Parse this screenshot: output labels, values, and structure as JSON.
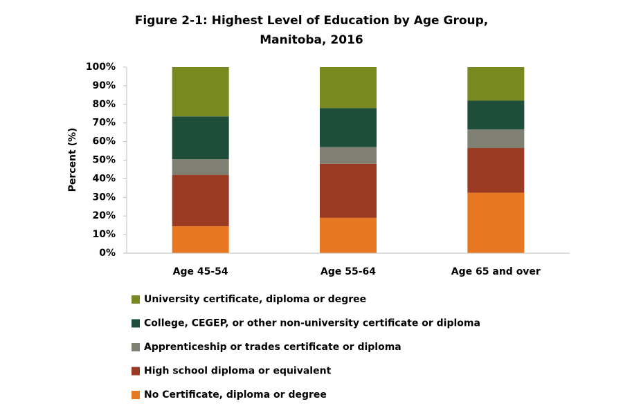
{
  "chart_data": {
    "type": "stacked-bar",
    "title": [
      "Figure 2-1: Highest Level of Education by Age Group,",
      "Manitoba, 2016"
    ],
    "ylabel": "Percent (%)",
    "categories": [
      "Age 45-54",
      "Age 55-64",
      "Age 65 and over"
    ],
    "series": [
      {
        "name": "No Certificate, diploma or degree",
        "color": "#e87722",
        "values": [
          14.5,
          19,
          32.5
        ]
      },
      {
        "name": "High school diploma or equivalent",
        "color": "#9b3a22",
        "values": [
          27.5,
          29,
          24
        ]
      },
      {
        "name": "Apprenticeship or trades certificate or diploma",
        "color": "#7f7f72",
        "values": [
          8.5,
          9,
          10
        ]
      },
      {
        "name": "College, CEGEP, or other non-university certificate or diploma",
        "color": "#1e4d3a",
        "values": [
          23,
          21,
          15.5
        ]
      },
      {
        "name": "University certificate, diploma or degree",
        "color": "#77891f",
        "values": [
          26.5,
          22,
          18
        ]
      }
    ],
    "ylim": [
      0,
      100
    ],
    "yticks": [
      {
        "value": 0,
        "label": "0%"
      },
      {
        "value": 10,
        "label": "10%"
      },
      {
        "value": 20,
        "label": "20%"
      },
      {
        "value": 30,
        "label": "30%"
      },
      {
        "value": 40,
        "label": "40%"
      },
      {
        "value": 50,
        "label": "50%"
      },
      {
        "value": 60,
        "label": "60%"
      },
      {
        "value": 70,
        "label": "70%"
      },
      {
        "value": 80,
        "label": "80%"
      },
      {
        "value": 90,
        "label": "90%"
      },
      {
        "value": 100,
        "label": "100%"
      }
    ],
    "grid": false,
    "legend": "bottom"
  }
}
